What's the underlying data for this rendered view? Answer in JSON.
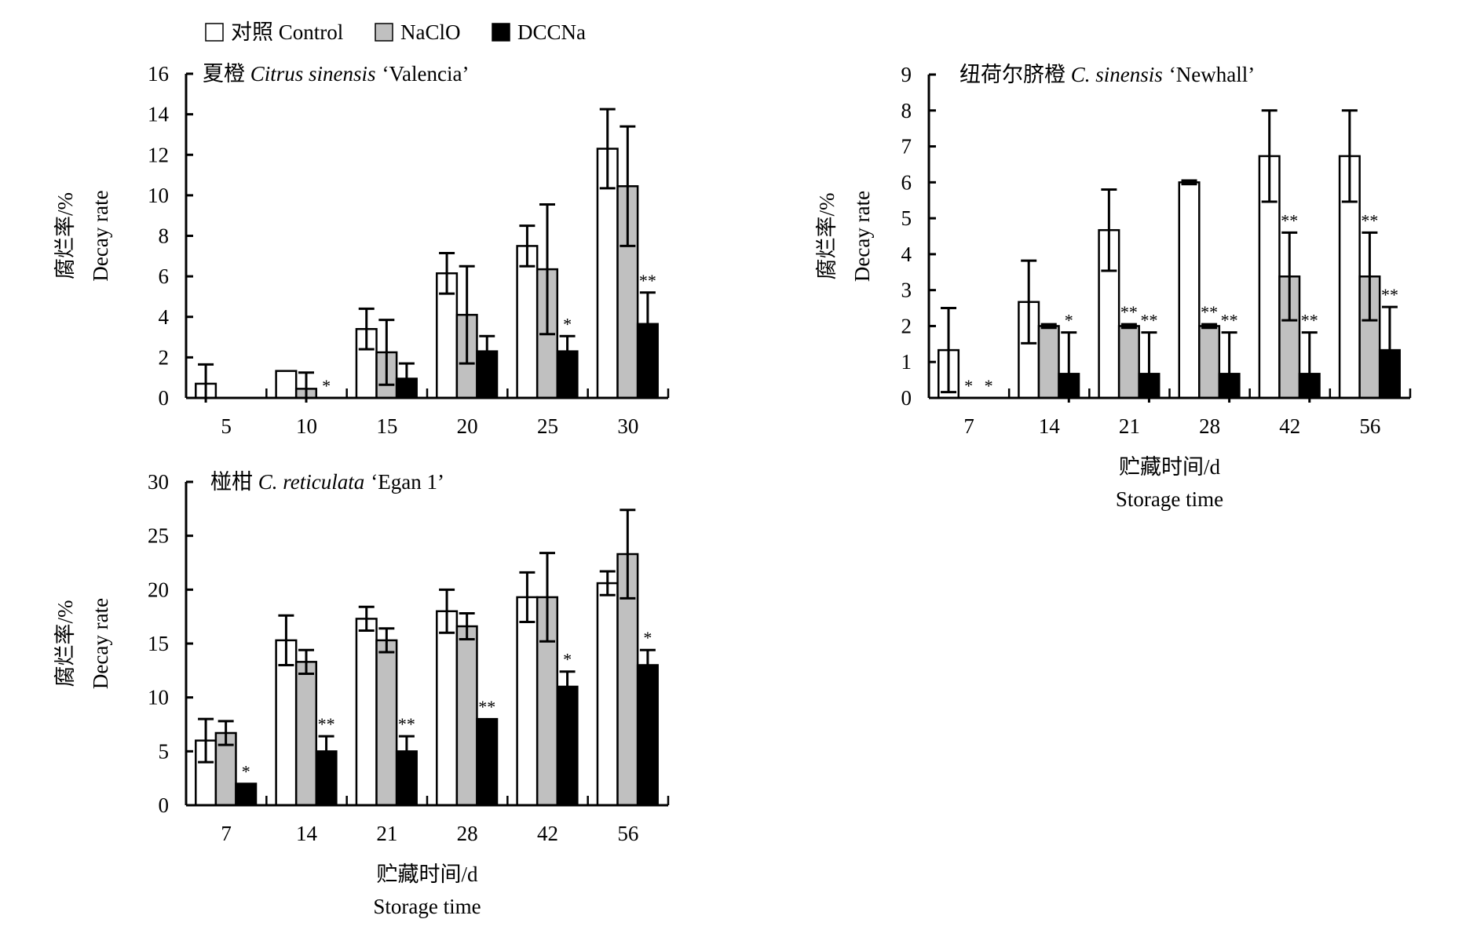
{
  "legend": {
    "items": [
      {
        "label": "对照 Control",
        "color": "#ffffff"
      },
      {
        "label": "NaClO",
        "color": "#c0c0c0"
      },
      {
        "label": "DCCNa",
        "color": "#000000"
      }
    ]
  },
  "chart_data": [
    {
      "type": "bar",
      "title_cn": "夏橙",
      "title_italic": "Citrus sinensis",
      "title_cultivar": "‘Valencia’",
      "ylabel_cn": "腐烂率/%",
      "ylabel_en": "Decay rate",
      "xlabel_cn": "",
      "xlabel_en": "",
      "ylim": [
        0,
        16
      ],
      "yticks": [
        "0",
        "2",
        "4",
        "6",
        "8",
        "10",
        "12",
        "14",
        "16"
      ],
      "categories": [
        "5",
        "10",
        "15",
        "20",
        "25",
        "30"
      ],
      "series": [
        {
          "name": "对照 Control",
          "values": [
            0.7,
            1.33,
            3.4,
            6.15,
            7.5,
            12.3
          ],
          "errors": [
            0.95,
            0,
            1.0,
            1.0,
            1.0,
            1.95
          ],
          "marks": [
            "",
            "",
            "",
            "",
            "",
            ""
          ]
        },
        {
          "name": "NaClO",
          "values": [
            0,
            0.45,
            2.25,
            4.1,
            6.35,
            10.45
          ],
          "errors": [
            0,
            0.8,
            1.6,
            2.4,
            3.2,
            2.95
          ],
          "marks": [
            "",
            "",
            "",
            "",
            "",
            ""
          ]
        },
        {
          "name": "DCCNa",
          "values": [
            0,
            0,
            0.95,
            2.3,
            2.3,
            3.65
          ],
          "errors": [
            0,
            0,
            0.75,
            0.75,
            0.75,
            1.55
          ],
          "marks": [
            "",
            "*",
            "",
            "",
            "*",
            "**"
          ]
        }
      ]
    },
    {
      "type": "bar",
      "title_cn": "纽荷尔脐橙",
      "title_italic": "C. sinensis",
      "title_cultivar": "‘Newhall’",
      "ylabel_cn": "腐烂率/%",
      "ylabel_en": "Decay rate",
      "xlabel_cn": "贮藏时间/d",
      "xlabel_en": "Storage time",
      "ylim": [
        0,
        9
      ],
      "yticks": [
        "0",
        "1",
        "2",
        "3",
        "4",
        "5",
        "6",
        "7",
        "8",
        "9"
      ],
      "categories": [
        "7",
        "14",
        "21",
        "28",
        "42",
        "56"
      ],
      "series": [
        {
          "name": "对照 Control",
          "values": [
            1.33,
            2.67,
            4.67,
            6.0,
            6.73,
            6.73
          ],
          "errors": [
            1.17,
            1.15,
            1.13,
            0.05,
            1.27,
            1.27
          ],
          "marks": [
            "",
            "",
            "",
            "",
            "",
            ""
          ]
        },
        {
          "name": "NaClO",
          "values": [
            0,
            2.0,
            2.0,
            2.0,
            3.38,
            3.38
          ],
          "errors": [
            0,
            0.05,
            0.05,
            0.05,
            1.22,
            1.22
          ],
          "marks": [
            "*",
            "",
            "**",
            "**",
            "**",
            "**"
          ]
        },
        {
          "name": "DCCNa",
          "values": [
            0,
            0.67,
            0.67,
            0.67,
            0.67,
            1.33
          ],
          "errors": [
            0,
            1.15,
            1.15,
            1.15,
            1.15,
            1.2
          ],
          "marks": [
            "*",
            "*",
            "**",
            "**",
            "**",
            "**"
          ]
        }
      ]
    },
    {
      "type": "bar",
      "title_cn": "椪柑",
      "title_italic": "C. reticulata",
      "title_cultivar": "‘Egan 1’",
      "ylabel_cn": "腐烂率/%",
      "ylabel_en": "Decay rate",
      "xlabel_cn": "贮藏时间/d",
      "xlabel_en": "Storage time",
      "ylim": [
        0,
        30
      ],
      "yticks": [
        "0",
        "5",
        "10",
        "15",
        "20",
        "25",
        "30"
      ],
      "categories": [
        "7",
        "14",
        "21",
        "28",
        "42",
        "56"
      ],
      "series": [
        {
          "name": "对照 Control",
          "values": [
            6.0,
            15.3,
            17.3,
            18.0,
            19.3,
            20.6
          ],
          "errors": [
            2.0,
            2.3,
            1.1,
            2.0,
            2.3,
            1.1
          ],
          "marks": [
            "",
            "",
            "",
            "",
            "",
            ""
          ]
        },
        {
          "name": "NaClO",
          "values": [
            6.7,
            13.3,
            15.3,
            16.6,
            19.3,
            23.3
          ],
          "errors": [
            1.1,
            1.1,
            1.1,
            1.2,
            4.1,
            4.1
          ],
          "marks": [
            "",
            "",
            "",
            "",
            "",
            ""
          ]
        },
        {
          "name": "DCCNa",
          "values": [
            2.0,
            5.0,
            5.0,
            8.0,
            11.0,
            13.0
          ],
          "errors": [
            0,
            1.4,
            1.4,
            0,
            1.4,
            1.4
          ],
          "marks": [
            "*",
            "**",
            "**",
            "**",
            "*",
            "*"
          ]
        }
      ]
    }
  ]
}
